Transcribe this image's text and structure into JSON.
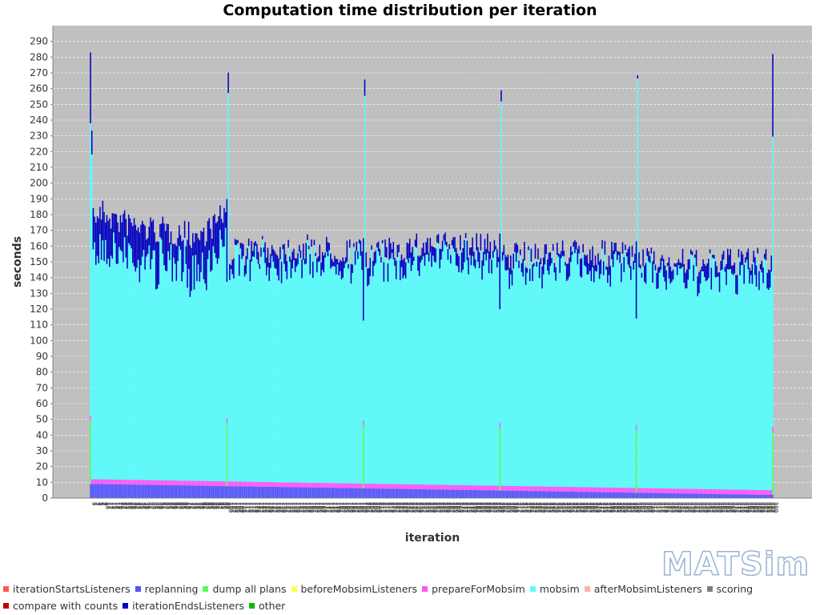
{
  "chart_data": {
    "type": "bar",
    "stacked": true,
    "title": "Computation time distribution per iteration",
    "xlabel": "iteration",
    "ylabel": "seconds",
    "ylim": [
      0,
      300
    ],
    "y_ticks": [
      0,
      10,
      20,
      30,
      40,
      50,
      60,
      70,
      80,
      90,
      100,
      110,
      120,
      130,
      140,
      150,
      160,
      170,
      180,
      190,
      200,
      210,
      220,
      230,
      240,
      250,
      260,
      270,
      280,
      290
    ],
    "x_range": [
      0,
      500
    ],
    "grid": true,
    "legend_position": "bottom",
    "approx_total_seconds": {
      "description": "upper envelope of stacked total, by iteration",
      "points": [
        [
          0,
          283
        ],
        [
          1,
          250
        ],
        [
          2,
          188
        ],
        [
          10,
          190
        ],
        [
          20,
          185
        ],
        [
          40,
          180
        ],
        [
          60,
          178
        ],
        [
          80,
          175
        ],
        [
          100,
          190
        ],
        [
          101,
          285
        ],
        [
          102,
          165
        ],
        [
          150,
          168
        ],
        [
          200,
          165
        ],
        [
          201,
          275
        ],
        [
          202,
          163
        ],
        [
          250,
          170
        ],
        [
          300,
          168
        ],
        [
          301,
          270
        ],
        [
          302,
          162
        ],
        [
          350,
          165
        ],
        [
          400,
          163
        ],
        [
          401,
          272
        ],
        [
          402,
          160
        ],
        [
          450,
          158
        ],
        [
          499,
          160
        ],
        [
          500,
          282
        ]
      ]
    },
    "series": [
      {
        "name": "iterationStartsListeners",
        "color": "#ff5555"
      },
      {
        "name": "replanning",
        "color": "#5555ff"
      },
      {
        "name": "dump all plans",
        "color": "#55ff55"
      },
      {
        "name": "beforeMobsimListeners",
        "color": "#ffff55"
      },
      {
        "name": "prepareForMobsim",
        "color": "#ff55ff"
      },
      {
        "name": "mobsim",
        "color": "#55ffff"
      },
      {
        "name": "afterMobsimListeners",
        "color": "#ffafaf"
      },
      {
        "name": "scoring",
        "color": "#808080"
      },
      {
        "name": "compare with counts",
        "color": "#c00000"
      },
      {
        "name": "iterationEndsListeners",
        "color": "#0000c0"
      },
      {
        "name": "other",
        "color": "#00c000"
      }
    ],
    "dump_all_plans_iterations": [
      0,
      100,
      200,
      300,
      400,
      500
    ],
    "dump_all_plans_seconds": 40,
    "replanning_seconds_start": 9,
    "replanning_seconds_end": 2,
    "prepareForMobsim_seconds": 3,
    "x_ticks_note": "all 501 iteration labels (0…500) printed vertically and overlapping; illegible"
  },
  "watermark": "MATSim"
}
